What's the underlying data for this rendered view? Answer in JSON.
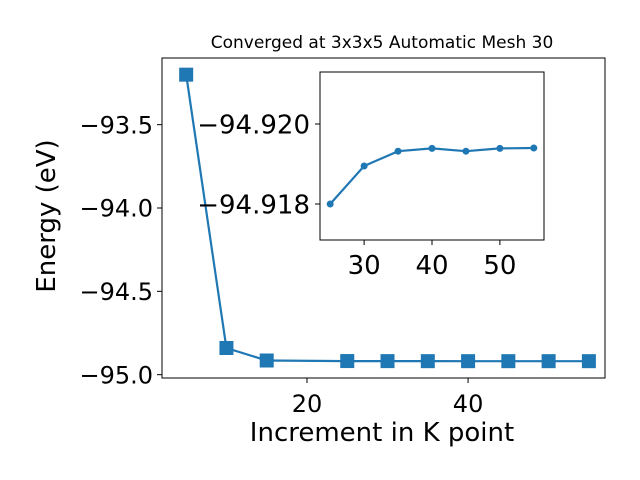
{
  "chart_data": [
    {
      "type": "line",
      "title": "Converged at 3x3x5 Automatic Mesh 30",
      "xlabel": "Increment in K point",
      "ylabel": "Energy (eV)",
      "xlim": [
        2,
        57
      ],
      "ylim": [
        -95.02,
        -93.1
      ],
      "y_inverted": false,
      "xticks": [
        20,
        40
      ],
      "yticks": [
        -93.5,
        -94.0,
        -94.5,
        -95.0
      ],
      "xtick_labels": [
        "20",
        "40"
      ],
      "ytick_labels": [
        "−93.5",
        "−94.0",
        "−94.5",
        "−95.0"
      ],
      "marker": "square",
      "color": "#1f77b4",
      "series": [
        {
          "x": [
            5,
            10,
            15,
            25,
            30,
            35,
            40,
            45,
            50,
            55
          ],
          "y": [
            -93.2,
            -94.84,
            -94.915,
            -94.9183,
            -94.9187,
            -94.9189,
            -94.919,
            -94.919,
            -94.919,
            -94.919
          ]
        }
      ]
    },
    {
      "type": "line",
      "inset": true,
      "xlim": [
        23.5,
        56.5
      ],
      "ylim": [
        -94.9213,
        -94.9171
      ],
      "y_inverted": true,
      "xticks": [
        30,
        40,
        50
      ],
      "yticks": [
        -94.92,
        -94.918
      ],
      "xtick_labels": [
        "30",
        "40",
        "50"
      ],
      "ytick_labels": [
        "−94.920",
        "−94.918"
      ],
      "marker": "circle",
      "color": "#1f77b4",
      "series": [
        {
          "x": [
            25,
            30,
            35,
            40,
            45,
            50,
            55
          ],
          "y": [
            -94.918,
            -94.91895,
            -94.91932,
            -94.91939,
            -94.91932,
            -94.91939,
            -94.9194
          ]
        }
      ]
    }
  ]
}
